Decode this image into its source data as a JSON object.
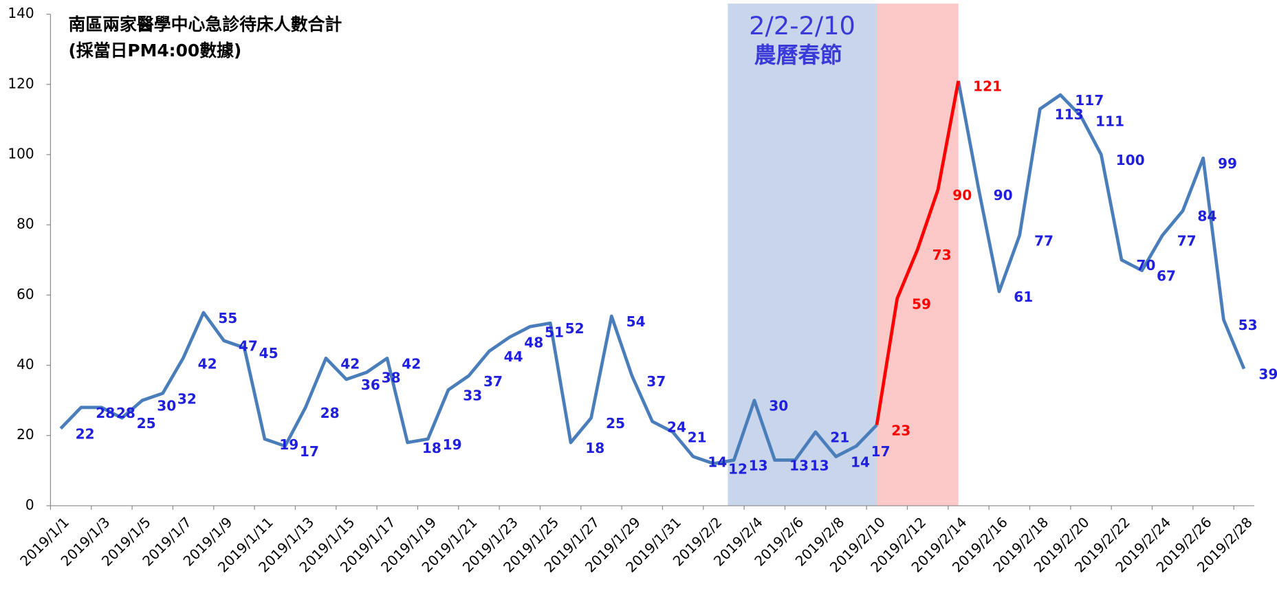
{
  "chart_data": {
    "type": "line",
    "title": "南區兩家醫學中心急診待床人數合計",
    "subtitle": "(採當日PM4:00數據)",
    "annotations": [
      "2/2-2/10",
      "農曆春節"
    ],
    "categories": [
      "2019/1/1",
      null,
      "2019/1/3",
      null,
      "2019/1/5",
      null,
      "2019/1/7",
      null,
      "2019/1/9",
      null,
      "2019/1/11",
      null,
      "2019/1/13",
      null,
      "2019/1/15",
      null,
      "2019/1/17",
      null,
      "2019/1/19",
      null,
      "2019/1/21",
      null,
      "2019/1/23",
      null,
      "2019/1/25",
      null,
      "2019/1/27",
      null,
      "2019/1/29",
      null,
      "2019/1/31",
      null,
      "2019/2/2",
      null,
      "2019/2/4",
      null,
      "2019/2/6",
      null,
      "2019/2/8",
      null,
      "2019/2/10",
      null,
      "2019/2/12",
      null,
      "2019/2/14",
      null,
      "2019/2/16",
      null,
      "2019/2/18",
      null,
      "2019/2/20",
      null,
      "2019/2/22",
      null,
      "2019/2/24",
      null,
      "2019/2/26",
      null,
      "2019/2/28"
    ],
    "series": [
      {
        "color": "#4a7ebb",
        "highlight_color": "#ff0000",
        "label_color": "#1f1fdd",
        "values": [
          22,
          28,
          28,
          25,
          30,
          32,
          42,
          55,
          47,
          45,
          19,
          17,
          28,
          42,
          36,
          38,
          42,
          18,
          19,
          33,
          37,
          44,
          48,
          51,
          52,
          18,
          25,
          54,
          37,
          24,
          21,
          14,
          12,
          13,
          30,
          13,
          13,
          21,
          14,
          17,
          23,
          59,
          73,
          90,
          121,
          90,
          61,
          77,
          113,
          117,
          111,
          100,
          70,
          67,
          77,
          84,
          99,
          53,
          39
        ]
      }
    ],
    "ylim": [
      0,
      140
    ],
    "yticks": [
      0,
      20,
      40,
      60,
      80,
      100,
      120,
      140
    ]
  }
}
